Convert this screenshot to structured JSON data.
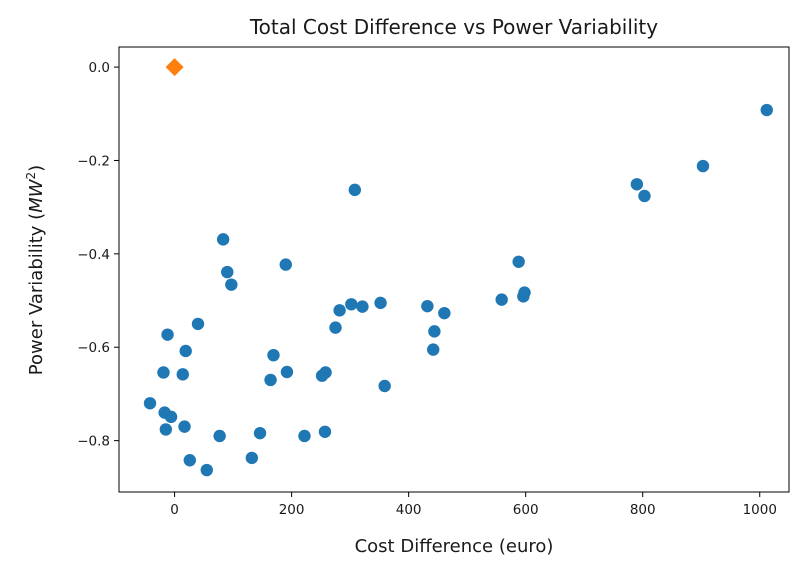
{
  "chart_data": {
    "type": "scatter",
    "title": "Total Cost Difference vs Power Variability",
    "xlabel": "Cost Difference (euro)",
    "ylabel_main": "Power Variability (",
    "ylabel_unit": "MW",
    "ylabel_sup": "2",
    "ylabel_close": ")",
    "xlim": [
      -95,
      1050
    ],
    "ylim": [
      -0.91,
      0.043
    ],
    "xticks": [
      0,
      200,
      400,
      600,
      800,
      1000
    ],
    "xtick_labels": [
      "0",
      "200",
      "400",
      "600",
      "800",
      "1000"
    ],
    "yticks": [
      0.0,
      -0.2,
      -0.4,
      -0.6,
      -0.8
    ],
    "ytick_labels": [
      "0.0",
      "−0.2",
      "−0.4",
      "−0.6",
      "−0.8"
    ],
    "grid": false,
    "series": [
      {
        "marker": "circle",
        "color": "#1f77b4",
        "points": [
          [
            1012,
            -0.092
          ],
          [
            903,
            -0.212
          ],
          [
            790,
            -0.251
          ],
          [
            803,
            -0.276
          ],
          [
            308,
            -0.263
          ],
          [
            588,
            -0.417
          ],
          [
            598,
            -0.483
          ],
          [
            596,
            -0.491
          ],
          [
            559,
            -0.498
          ],
          [
            461,
            -0.527
          ],
          [
            432,
            -0.512
          ],
          [
            444,
            -0.566
          ],
          [
            442,
            -0.605
          ],
          [
            352,
            -0.505
          ],
          [
            321,
            -0.513
          ],
          [
            302,
            -0.508
          ],
          [
            282,
            -0.521
          ],
          [
            275,
            -0.558
          ],
          [
            359,
            -0.683
          ],
          [
            258,
            -0.654
          ],
          [
            252,
            -0.661
          ],
          [
            190,
            -0.423
          ],
          [
            192,
            -0.653
          ],
          [
            169,
            -0.617
          ],
          [
            164,
            -0.67
          ],
          [
            83,
            -0.369
          ],
          [
            90,
            -0.439
          ],
          [
            97,
            -0.466
          ],
          [
            40,
            -0.55
          ],
          [
            -12,
            -0.573
          ],
          [
            19,
            -0.608
          ],
          [
            14,
            -0.658
          ],
          [
            -19,
            -0.654
          ],
          [
            -42,
            -0.72
          ],
          [
            -17,
            -0.74
          ],
          [
            -6,
            -0.749
          ],
          [
            -15,
            -0.776
          ],
          [
            17,
            -0.77
          ],
          [
            77,
            -0.79
          ],
          [
            146,
            -0.784
          ],
          [
            222,
            -0.79
          ],
          [
            257,
            -0.781
          ],
          [
            132,
            -0.837
          ],
          [
            26,
            -0.842
          ],
          [
            55,
            -0.863
          ]
        ]
      },
      {
        "marker": "diamond",
        "color": "#ff7f0e",
        "points": [
          [
            0,
            0.0
          ]
        ]
      }
    ]
  }
}
